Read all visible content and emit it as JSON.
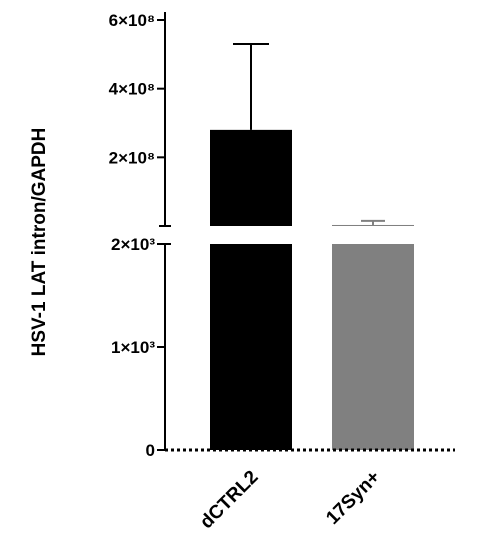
{
  "chart_data": {
    "type": "bar",
    "title": "",
    "xlabel": "",
    "ylabel": "HSV-1 LAT intron/GAPDH",
    "categories": [
      "dCTRL2",
      "17Syn+"
    ],
    "series": [
      {
        "values": [
          280000000,
          3000000
        ],
        "error_upper": [
          530000000,
          15000000
        ]
      }
    ],
    "bar_colors": [
      "#000000",
      "#808080"
    ],
    "axis_break": true,
    "lower_segment": {
      "ylim": [
        0,
        2000
      ],
      "ticks": [
        0,
        1000,
        2000
      ],
      "tick_labels": [
        "0",
        "1×10³",
        "2×10³"
      ]
    },
    "upper_segment": {
      "ylim": [
        0,
        600000000
      ],
      "ticks": [
        200000000,
        400000000,
        600000000
      ],
      "tick_labels": [
        "2×10⁸",
        "4×10⁸",
        "6×10⁸"
      ]
    },
    "legend": "none",
    "grid": false
  }
}
